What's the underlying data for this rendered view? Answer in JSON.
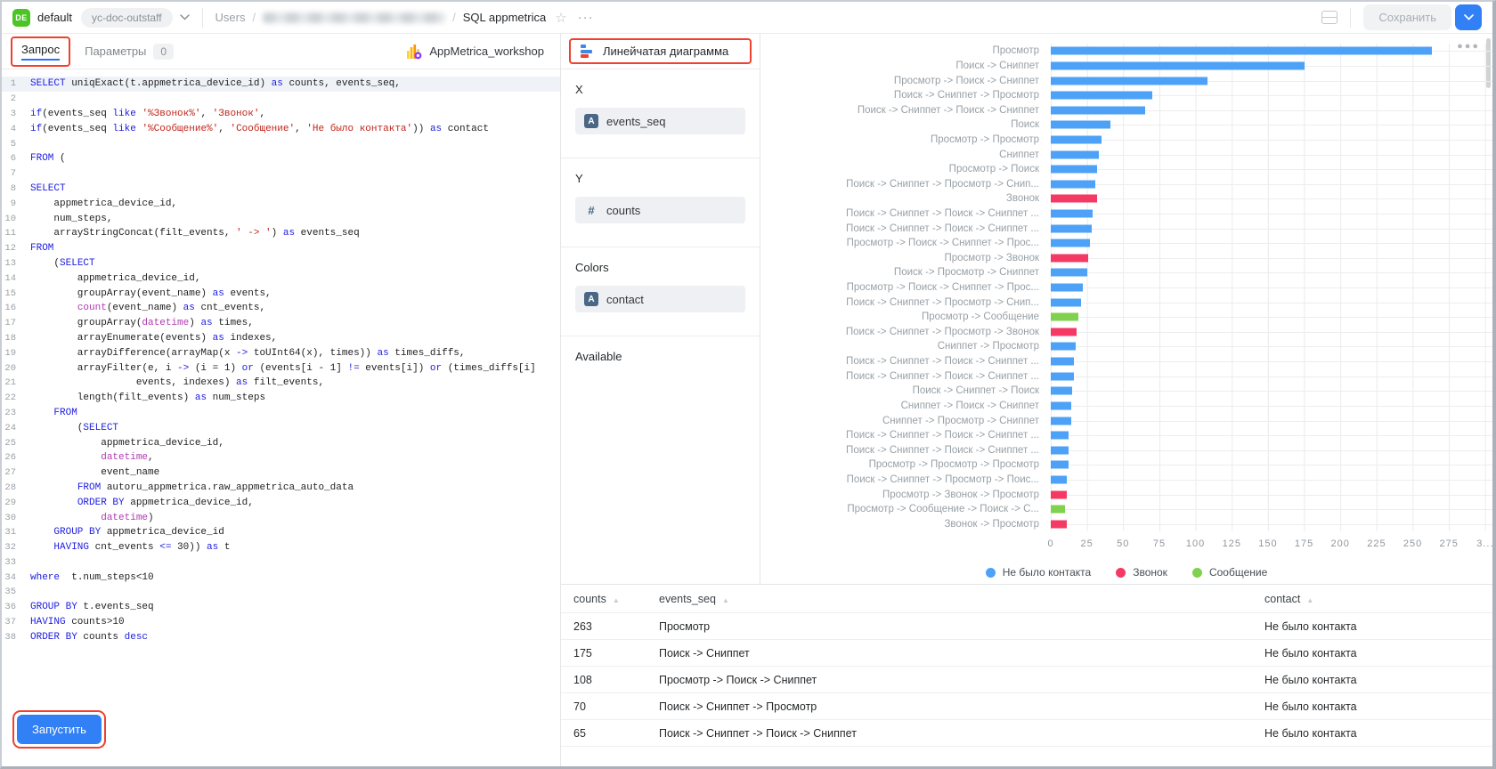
{
  "colors": {
    "accent_blue": "#3180f5",
    "highlight_red": "#f0402e",
    "active_tab_underline": "#2970ff",
    "project_badge_green": "#4cc426"
  },
  "topbar": {
    "project_badge": "DE",
    "project_name": "default",
    "env_pill": "yc-doc-outstaff",
    "breadcrumb_root": "Users",
    "breadcrumb_sep1": "/",
    "breadcrumb_sep2": "/",
    "breadcrumb_current": "SQL appmetrica",
    "star": "☆",
    "more": "···",
    "save_label": "Сохранить"
  },
  "editor": {
    "tab_query": "Запрос",
    "tab_params": "Параметры",
    "params_count": "0",
    "dataset_label": "AppMetrica_workshop",
    "run_label": "Запустить",
    "code_lines": [
      [
        [
          "kw",
          "SELECT"
        ],
        [
          "t",
          " uniqExact(t.appmetrica_device_id) "
        ],
        [
          "kw",
          "as"
        ],
        [
          "t",
          " counts, events_seq,"
        ]
      ],
      [],
      [
        [
          "kw",
          "if"
        ],
        [
          "t",
          "(events_seq "
        ],
        [
          "kw",
          "like"
        ],
        [
          "t",
          " "
        ],
        [
          "s",
          "'%Звонок%'"
        ],
        [
          "t",
          ", "
        ],
        [
          "s",
          "'Звонок'"
        ],
        [
          "t",
          ","
        ]
      ],
      [
        [
          "kw",
          "if"
        ],
        [
          "t",
          "(events_seq "
        ],
        [
          "kw",
          "like"
        ],
        [
          "t",
          " "
        ],
        [
          "s",
          "'%Сообщение%'"
        ],
        [
          "t",
          ", "
        ],
        [
          "s",
          "'Сообщение'"
        ],
        [
          "t",
          ", "
        ],
        [
          "s",
          "'Не было контакта'"
        ],
        [
          "t",
          ")) "
        ],
        [
          "kw",
          "as"
        ],
        [
          "t",
          " contact"
        ]
      ],
      [],
      [
        [
          "kw",
          "FROM"
        ],
        [
          "t",
          " ("
        ]
      ],
      [],
      [
        [
          "kw",
          "SELECT"
        ]
      ],
      [
        [
          "t",
          "    appmetrica_device_id,"
        ]
      ],
      [
        [
          "t",
          "    num_steps,"
        ]
      ],
      [
        [
          "t",
          "    arrayStringConcat(filt_events, "
        ],
        [
          "s",
          "' -> '"
        ],
        [
          "t",
          ") "
        ],
        [
          "kw",
          "as"
        ],
        [
          "t",
          " events_seq"
        ]
      ],
      [
        [
          "kw",
          "FROM"
        ]
      ],
      [
        [
          "t",
          "    ("
        ],
        [
          "kw",
          "SELECT"
        ]
      ],
      [
        [
          "t",
          "        appmetrica_device_id,"
        ]
      ],
      [
        [
          "t",
          "        groupArray(event_name) "
        ],
        [
          "kw",
          "as"
        ],
        [
          "t",
          " events,"
        ]
      ],
      [
        [
          "t",
          "        "
        ],
        [
          "fn",
          "count"
        ],
        [
          "t",
          "(event_name) "
        ],
        [
          "kw",
          "as"
        ],
        [
          "t",
          " cnt_events,"
        ]
      ],
      [
        [
          "t",
          "        groupArray("
        ],
        [
          "fn",
          "datetime"
        ],
        [
          "t",
          ") "
        ],
        [
          "kw",
          "as"
        ],
        [
          "t",
          " times,"
        ]
      ],
      [
        [
          "t",
          "        arrayEnumerate(events) "
        ],
        [
          "kw",
          "as"
        ],
        [
          "t",
          " indexes,"
        ]
      ],
      [
        [
          "t",
          "        arrayDifference(arrayMap(x "
        ],
        [
          "kw",
          "->"
        ],
        [
          "t",
          " toUInt64(x), times)) "
        ],
        [
          "kw",
          "as"
        ],
        [
          "t",
          " times_diffs,"
        ]
      ],
      [
        [
          "t",
          "        arrayFilter(e, i "
        ],
        [
          "kw",
          "->"
        ],
        [
          "t",
          " (i = 1) "
        ],
        [
          "kw",
          "or"
        ],
        [
          "t",
          " (events[i - 1] "
        ],
        [
          "kw",
          "!="
        ],
        [
          "t",
          " events[i]) "
        ],
        [
          "kw",
          "or"
        ],
        [
          "t",
          " (times_diffs[i]"
        ]
      ],
      [
        [
          "t",
          "                  events, indexes) "
        ],
        [
          "kw",
          "as"
        ],
        [
          "t",
          " filt_events,"
        ]
      ],
      [
        [
          "t",
          "        length(filt_events) "
        ],
        [
          "kw",
          "as"
        ],
        [
          "t",
          " num_steps"
        ]
      ],
      [
        [
          "t",
          "    "
        ],
        [
          "kw",
          "FROM"
        ]
      ],
      [
        [
          "t",
          "        ("
        ],
        [
          "kw",
          "SELECT"
        ]
      ],
      [
        [
          "t",
          "            appmetrica_device_id,"
        ]
      ],
      [
        [
          "t",
          "            "
        ],
        [
          "fn",
          "datetime"
        ],
        [
          "t",
          ","
        ]
      ],
      [
        [
          "t",
          "            event_name"
        ]
      ],
      [
        [
          "t",
          "        "
        ],
        [
          "kw",
          "FROM"
        ],
        [
          "t",
          " autoru_appmetrica.raw_appmetrica_auto_data"
        ]
      ],
      [
        [
          "t",
          "        "
        ],
        [
          "kw",
          "ORDER BY"
        ],
        [
          "t",
          " appmetrica_device_id,"
        ]
      ],
      [
        [
          "t",
          "            "
        ],
        [
          "fn",
          "datetime"
        ],
        [
          "t",
          ")"
        ]
      ],
      [
        [
          "t",
          "    "
        ],
        [
          "kw",
          "GROUP BY"
        ],
        [
          "t",
          " appmetrica_device_id"
        ]
      ],
      [
        [
          "t",
          "    "
        ],
        [
          "kw",
          "HAVING"
        ],
        [
          "t",
          " cnt_events "
        ],
        [
          "kw",
          "<="
        ],
        [
          "t",
          " 30)) "
        ],
        [
          "kw",
          "as"
        ],
        [
          "t",
          " t"
        ]
      ],
      [],
      [
        [
          "kw",
          "where"
        ],
        [
          "t",
          "  t.num_steps<10"
        ]
      ],
      [],
      [
        [
          "kw",
          "GROUP BY"
        ],
        [
          "t",
          " t.events_seq"
        ]
      ],
      [
        [
          "kw",
          "HAVING"
        ],
        [
          "t",
          " counts>10"
        ]
      ],
      [
        [
          "kw",
          "ORDER BY"
        ],
        [
          "t",
          " counts "
        ],
        [
          "kw",
          "desc"
        ]
      ]
    ]
  },
  "config": {
    "chart_type": "Линейчатая диаграмма",
    "section_x": {
      "label": "X",
      "field": "events_seq",
      "badge": "A"
    },
    "section_y": {
      "label": "Y",
      "field": "counts",
      "badge": "#"
    },
    "section_colors": {
      "label": "Colors",
      "field": "contact",
      "badge": "A"
    },
    "section_available": {
      "label": "Available"
    }
  },
  "chart_data": {
    "type": "bar",
    "orientation": "horizontal",
    "title": "",
    "xlabel": "",
    "ylabel": "",
    "xlim": [
      0,
      305
    ],
    "grid": true,
    "legend_position": "bottom",
    "x_ticks": [
      0,
      25,
      50,
      75,
      100,
      125,
      150,
      175,
      200,
      225,
      250,
      275
    ],
    "x_tick_truncated": {
      "value": 300,
      "label": "3..."
    },
    "series": [
      {
        "name": "Не было контакта",
        "color": "#4da2f7"
      },
      {
        "name": "Звонок",
        "color": "#f43a64"
      },
      {
        "name": "Сообщение",
        "color": "#7fd14f"
      }
    ],
    "categories": [
      "Просмотр",
      "Поиск -> Сниппет",
      "Просмотр -> Поиск -> Сниппет",
      "Поиск -> Сниппет -> Просмотр",
      "Поиск -> Сниппет -> Поиск -> Сниппет",
      "Поиск",
      "Просмотр -> Просмотр",
      "Сниппет",
      "Просмотр -> Поиск",
      "Поиск -> Сниппет -> Просмотр -> Снип...",
      "Звонок",
      "Поиск -> Сниппет -> Поиск -> Сниппет ...",
      "Поиск -> Сниппет -> Поиск -> Сниппет ...",
      "Просмотр -> Поиск -> Сниппет -> Прос...",
      "Просмотр -> Звонок",
      "Поиск -> Просмотр -> Сниппет",
      "Просмотр -> Поиск -> Сниппет -> Прос...",
      "Поиск -> Сниппет -> Просмотр -> Снип...",
      "Просмотр -> Сообщение",
      "Поиск -> Сниппет -> Просмотр -> Звонок",
      "Сниппет -> Просмотр",
      "Поиск -> Сниппет -> Поиск -> Сниппет ...",
      "Поиск -> Сниппет -> Поиск -> Сниппет ...",
      "Поиск -> Сниппет -> Поиск",
      "Сниппет -> Поиск -> Сниппет",
      "Сниппет -> Просмотр -> Сниппет",
      "Поиск -> Сниппет -> Поиск -> Сниппет ...",
      "Поиск -> Сниппет -> Поиск -> Сниппет ...",
      "Просмотр -> Просмотр -> Просмотр",
      "Поиск -> Сниппет -> Просмотр -> Поис...",
      "Просмотр -> Звонок -> Просмотр",
      "Просмотр -> Сообщение -> Поиск -> С...",
      "Звонок -> Просмотр"
    ],
    "values": [
      263,
      175,
      108,
      70,
      65,
      41,
      35,
      33,
      32,
      31,
      32,
      29,
      28,
      27,
      26,
      25,
      22,
      21,
      19,
      18,
      17,
      16,
      16,
      15,
      14,
      14,
      12,
      12,
      12,
      11,
      11,
      10,
      11
    ],
    "series_by_bar": [
      "Не было контакта",
      "Не было контакта",
      "Не было контакта",
      "Не было контакта",
      "Не было контакта",
      "Не было контакта",
      "Не было контакта",
      "Не было контакта",
      "Не было контакта",
      "Не было контакта",
      "Звонок",
      "Не было контакта",
      "Не было контакта",
      "Не было контакта",
      "Звонок",
      "Не было контакта",
      "Не было контакта",
      "Не было контакта",
      "Сообщение",
      "Звонок",
      "Не было контакта",
      "Не было контакта",
      "Не было контакта",
      "Не было контакта",
      "Не было контакта",
      "Не было контакта",
      "Не было контакта",
      "Не было контакта",
      "Не было контакта",
      "Не было контакта",
      "Звонок",
      "Сообщение",
      "Звонок"
    ]
  },
  "table": {
    "columns": [
      "counts",
      "events_seq",
      "contact"
    ],
    "rows": [
      [
        "263",
        "Просмотр",
        "Не было контакта"
      ],
      [
        "175",
        "Поиск -> Сниппет",
        "Не было контакта"
      ],
      [
        "108",
        "Просмотр -> Поиск -> Сниппет",
        "Не было контакта"
      ],
      [
        "70",
        "Поиск -> Сниппет -> Просмотр",
        "Не было контакта"
      ],
      [
        "65",
        "Поиск -> Сниппет -> Поиск -> Сниппет",
        "Не было контакта"
      ]
    ]
  }
}
